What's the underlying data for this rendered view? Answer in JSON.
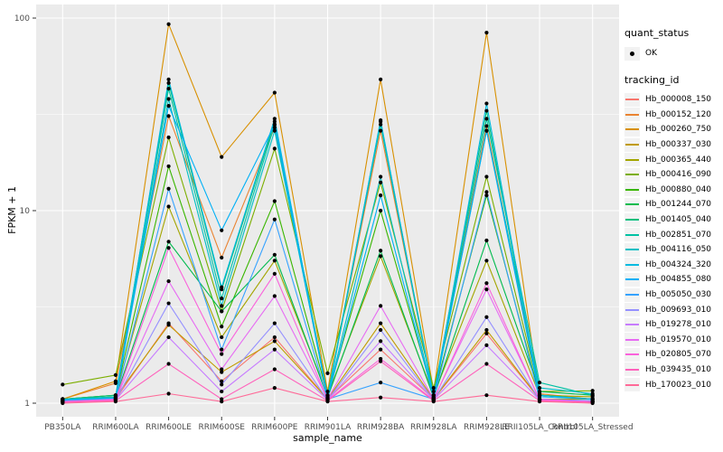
{
  "chart_data": {
    "type": "line",
    "xlabel": "sample_name",
    "ylabel": "FPKM + 1",
    "y_scale": "log10",
    "y_ticks": [
      "1",
      "10",
      "100"
    ],
    "y_tick_values": [
      1,
      10,
      100
    ],
    "y_minor_values": [
      3.162,
      31.62
    ],
    "ylim": [
      0.85,
      115
    ],
    "grid": true,
    "panel_bg": "#EBEBEB",
    "grid_color": "#FFFFFF",
    "tick_label_color": "#4D4D4D",
    "point_color": "#000000",
    "legend_position": "right",
    "legend": {
      "quant_status_title": "quant_status",
      "ok_label": "OK",
      "tracking_title": "tracking_id"
    },
    "categories": [
      "PB350LA",
      "RRIM600LA",
      "RRIM600LE",
      "RRIM600SE",
      "RRIM600PE",
      "RRIM901LA",
      "RRIM928BA",
      "RRIM928LA",
      "RRIM928LE",
      "RRII105LA_Control",
      "RRII105LA_Stressed"
    ],
    "series": [
      {
        "name": "Hb_000008_150",
        "color": "#F8766D",
        "values": [
          1.02,
          1.05,
          2.6,
          1.3,
          2.2,
          1.05,
          1.9,
          1.05,
          2.3,
          1.05,
          1.02
        ]
      },
      {
        "name": "Hb_000152_120",
        "color": "#EA8331",
        "values": [
          1.05,
          1.27,
          31,
          5.7,
          27,
          1.1,
          26,
          1.1,
          27.5,
          1.12,
          1.05
        ]
      },
      {
        "name": "Hb_000260_750",
        "color": "#D89000",
        "values": [
          1.05,
          1.3,
          93,
          19,
          41,
          1.15,
          48,
          1.15,
          84,
          1.1,
          1.05
        ]
      },
      {
        "name": "Hb_000337_030",
        "color": "#C09B00",
        "values": [
          1.02,
          1.08,
          2.55,
          1.45,
          2.1,
          1.05,
          2.6,
          1.05,
          2.4,
          1.05,
          1.05
        ]
      },
      {
        "name": "Hb_000365_440",
        "color": "#A3A500",
        "values": [
          1.05,
          1.1,
          10.5,
          2.2,
          5.5,
          1.1,
          5.8,
          1.1,
          5.5,
          1.1,
          1.08
        ]
      },
      {
        "name": "Hb_000416_090",
        "color": "#7CAE00",
        "values": [
          1.25,
          1.4,
          24,
          3.0,
          21,
          1.43,
          14,
          1.2,
          15,
          1.15,
          1.16
        ]
      },
      {
        "name": "Hb_000880_040",
        "color": "#39B600",
        "values": [
          1.05,
          1.1,
          17,
          2.5,
          11.2,
          1.1,
          10,
          1.1,
          12,
          1.1,
          1.05
        ]
      },
      {
        "name": "Hb_001244_070",
        "color": "#00BB4E",
        "values": [
          1.03,
          1.07,
          6.9,
          3.0,
          5.9,
          1.07,
          6.2,
          1.07,
          7.0,
          1.15,
          1.1
        ]
      },
      {
        "name": "Hb_001405_040",
        "color": "#00BF7D",
        "values": [
          1.05,
          1.1,
          46,
          3.9,
          29,
          1.1,
          29,
          1.1,
          33,
          1.1,
          1.05
        ]
      },
      {
        "name": "Hb_002851_070",
        "color": "#00C1A3",
        "values": [
          1.05,
          1.08,
          43,
          3.5,
          28,
          1.08,
          28,
          1.08,
          30,
          1.28,
          1.1
        ]
      },
      {
        "name": "Hb_004116_050",
        "color": "#00BFC4",
        "values": [
          1.05,
          1.07,
          38,
          3.2,
          26,
          1.07,
          15,
          1.07,
          26,
          1.2,
          1.12
        ]
      },
      {
        "name": "Hb_004324_320",
        "color": "#00BAE0",
        "values": [
          1.04,
          1.06,
          48,
          4.0,
          30,
          1.06,
          29.5,
          1.06,
          36,
          1.1,
          1.05
        ]
      },
      {
        "name": "Hb_004855_080",
        "color": "#00B0F6",
        "values": [
          1.04,
          1.06,
          35,
          7.9,
          28,
          1.06,
          12,
          1.06,
          26,
          1.08,
          1.05
        ]
      },
      {
        "name": "Hb_005050_030",
        "color": "#35A2FF",
        "values": [
          1.03,
          1.05,
          13,
          1.9,
          9,
          1.05,
          1.28,
          1.05,
          12.5,
          1.05,
          1.03
        ]
      },
      {
        "name": "Hb_009693_010",
        "color": "#9590FF",
        "values": [
          1.02,
          1.04,
          3.3,
          1.25,
          2.6,
          1.04,
          2.4,
          1.04,
          2.8,
          1.04,
          1.02
        ]
      },
      {
        "name": "Hb_019278_010",
        "color": "#C77CFF",
        "values": [
          1.02,
          1.04,
          2.2,
          1.15,
          1.9,
          1.04,
          2.1,
          1.04,
          2.0,
          1.04,
          1.02
        ]
      },
      {
        "name": "Hb_019570_010",
        "color": "#E76BF3",
        "values": [
          1.02,
          1.05,
          4.3,
          1.5,
          3.6,
          1.05,
          3.2,
          1.05,
          3.9,
          1.05,
          1.02
        ]
      },
      {
        "name": "Hb_020805_070",
        "color": "#FA62DB",
        "values": [
          1.02,
          1.04,
          6.4,
          1.8,
          4.7,
          1.04,
          1.7,
          1.04,
          4.2,
          1.04,
          1.02
        ]
      },
      {
        "name": "Hb_039435_010",
        "color": "#FF62BC",
        "values": [
          1.01,
          1.03,
          1.6,
          1.05,
          1.5,
          1.03,
          1.65,
          1.03,
          1.6,
          1.03,
          1.01
        ]
      },
      {
        "name": "Hb_170023_010",
        "color": "#FF6A98",
        "values": [
          1.0,
          1.02,
          1.12,
          1.02,
          1.2,
          1.02,
          1.07,
          1.02,
          1.1,
          1.02,
          1.0
        ]
      }
    ]
  }
}
